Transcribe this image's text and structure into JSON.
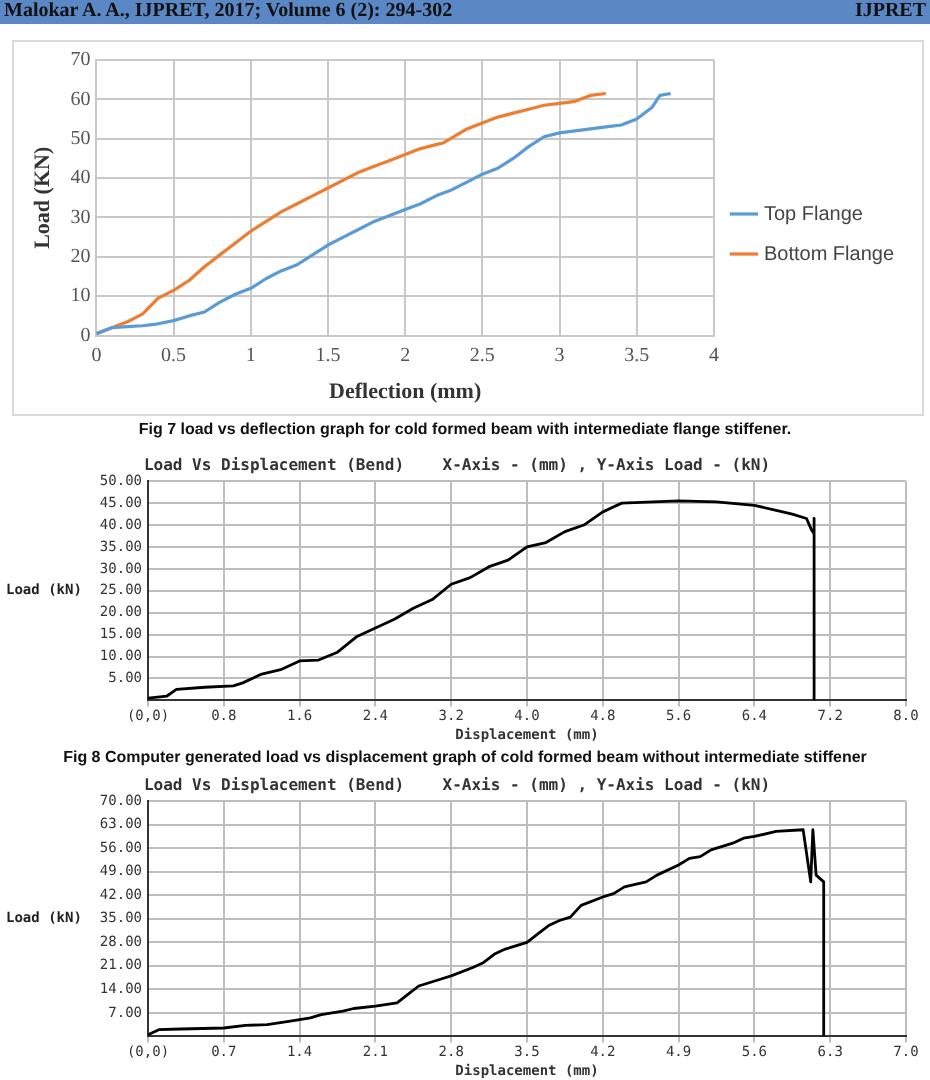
{
  "chart_data": [
    {
      "type": "line",
      "xlabel": "Deflection (mm)",
      "ylabel": "Load (KN)",
      "legend": "right",
      "grid": true,
      "marker": "none",
      "xlim": [
        0,
        4
      ],
      "ylim": [
        0,
        70
      ],
      "xticks": [
        0,
        0.5,
        1,
        1.5,
        2,
        2.5,
        3,
        3.5,
        4
      ],
      "yticks": [
        0,
        10,
        20,
        30,
        40,
        50,
        60,
        70
      ],
      "annotations": [
        "Malokar A. A., IJPRET, 2017; Volume 6 (2): 294-302",
        "IJPRET",
        "Fig 7 load vs deflection graph for cold formed beam with intermediate flange stiffener."
      ],
      "series": [
        {
          "name": "Top Flange",
          "color": "#5b9bd5",
          "x": [
            0,
            0.1,
            0.2,
            0.3,
            0.4,
            0.5,
            0.6,
            0.7,
            0.8,
            0.9,
            1.0,
            1.1,
            1.2,
            1.3,
            1.4,
            1.5,
            1.6,
            1.7,
            1.8,
            1.9,
            2.0,
            2.1,
            2.2,
            2.3,
            2.4,
            2.5,
            2.6,
            2.7,
            2.8,
            2.9,
            3.0,
            3.1,
            3.2,
            3.3,
            3.4,
            3.5,
            3.6,
            3.65,
            3.72
          ],
          "values": [
            0.5,
            2,
            2.3,
            2.5,
            3,
            3.8,
            5,
            6,
            8.5,
            10.5,
            12,
            14.5,
            16.5,
            18,
            20.5,
            23,
            25,
            27,
            29,
            30.5,
            32,
            33.5,
            35.5,
            37,
            39,
            41,
            42.5,
            45,
            48,
            50.5,
            51.5,
            52,
            52.5,
            53,
            53.5,
            55,
            58,
            61,
            61.5
          ]
        },
        {
          "name": "Bottom Flange",
          "color": "#ed7d31",
          "x": [
            0,
            0.1,
            0.2,
            0.3,
            0.4,
            0.5,
            0.6,
            0.7,
            0.8,
            0.9,
            1.0,
            1.1,
            1.2,
            1.3,
            1.4,
            1.5,
            1.6,
            1.7,
            1.8,
            1.9,
            2.0,
            2.1,
            2.2,
            2.25,
            2.4,
            2.5,
            2.6,
            2.7,
            2.8,
            2.9,
            3.0,
            3.1,
            3.2,
            3.3
          ],
          "values": [
            0.5,
            2,
            3.5,
            5.5,
            9.5,
            11.5,
            14,
            17.5,
            20.5,
            23.5,
            26.5,
            29,
            31.5,
            33.5,
            35.5,
            37.5,
            39.5,
            41.5,
            43,
            44.5,
            46,
            47.5,
            48.5,
            49,
            52.5,
            54,
            55.5,
            56.5,
            57.5,
            58.5,
            59,
            59.5,
            61,
            61.5
          ]
        }
      ]
    },
    {
      "type": "line",
      "title": "Load Vs Displacement (Bend)    X-Axis - (mm) , Y-Axis Load - (kN)",
      "xlabel": "Displacement (mm)",
      "ylabel": "Load (kN)",
      "grid": true,
      "marker": "none",
      "color": "#000000",
      "xlim": [
        0,
        8
      ],
      "ylim": [
        0,
        50
      ],
      "xticks": [
        {
          "value": 0,
          "label": "(0,0)"
        },
        0.8,
        1.6,
        2.4,
        3.2,
        {
          "value": 4,
          "label": "4.0"
        },
        4.8,
        5.6,
        6.4,
        7.2,
        {
          "value": 8,
          "label": "8.0"
        }
      ],
      "yticks": [
        {
          "value": 5,
          "label": "5.00"
        },
        {
          "value": 10,
          "label": "10.00"
        },
        {
          "value": 15,
          "label": "15.00"
        },
        {
          "value": 20,
          "label": "20.00"
        },
        {
          "value": 25,
          "label": "25.00"
        },
        {
          "value": 30,
          "label": "30.00"
        },
        {
          "value": 35,
          "label": "35.00"
        },
        {
          "value": 40,
          "label": "40.00"
        },
        {
          "value": 45,
          "label": "45.00"
        },
        {
          "value": 50,
          "label": "50.00"
        }
      ],
      "annotations": [
        "Fig 8 Computer generated load vs displacement graph of cold formed beam without intermediate stiffener"
      ],
      "x": [
        0,
        0.2,
        0.3,
        0.6,
        0.9,
        1.0,
        1.2,
        1.4,
        1.6,
        1.8,
        2.0,
        2.2,
        2.4,
        2.6,
        2.8,
        3.0,
        3.2,
        3.4,
        3.6,
        3.8,
        4.0,
        4.2,
        4.4,
        4.6,
        4.8,
        5.0,
        5.6,
        6.0,
        6.4,
        6.8,
        6.95,
        7.0,
        7.03,
        7.03,
        7.03
      ],
      "values": [
        0.5,
        1,
        2.5,
        3,
        3.3,
        4,
        6,
        7,
        9,
        9.2,
        11,
        14.5,
        16.5,
        18.5,
        21,
        23,
        26.5,
        28,
        30.5,
        32,
        35,
        36,
        38.5,
        40,
        43,
        45,
        45.5,
        45.3,
        44.5,
        42.5,
        41.5,
        39,
        38,
        41.5,
        0
      ]
    },
    {
      "type": "line",
      "title": "Load Vs Displacement (Bend)    X-Axis - (mm) , Y-Axis Load - (kN)",
      "xlabel": "Displacement (mm)",
      "ylabel": "Load (kN)",
      "grid": true,
      "marker": "none",
      "color": "#000000",
      "xlim": [
        0,
        7
      ],
      "ylim": [
        0,
        70
      ],
      "xticks": [
        {
          "value": 0,
          "label": "(0,0)"
        },
        0.7,
        1.4,
        2.1,
        2.8,
        3.5,
        4.2,
        4.9,
        5.6,
        6.3,
        {
          "value": 7,
          "label": "7.0"
        }
      ],
      "yticks": [
        {
          "value": 7,
          "label": "7.00"
        },
        {
          "value": 14,
          "label": "14.00"
        },
        {
          "value": 21,
          "label": "21.00"
        },
        {
          "value": 28,
          "label": "28.00"
        },
        {
          "value": 35,
          "label": "35.00"
        },
        {
          "value": 42,
          "label": "42.00"
        },
        {
          "value": 49,
          "label": "49.00"
        },
        {
          "value": 56,
          "label": "56.00"
        },
        {
          "value": 63,
          "label": "63.00"
        },
        {
          "value": 70,
          "label": "70.00"
        }
      ],
      "x": [
        0,
        0.1,
        0.3,
        0.7,
        0.9,
        1.1,
        1.3,
        1.5,
        1.6,
        1.8,
        1.9,
        2.1,
        2.3,
        2.4,
        2.5,
        2.7,
        2.8,
        3.0,
        3.1,
        3.2,
        3.3,
        3.5,
        3.6,
        3.7,
        3.8,
        3.9,
        4.0,
        4.2,
        4.3,
        4.4,
        4.6,
        4.7,
        4.9,
        5.0,
        5.1,
        5.2,
        5.4,
        5.5,
        5.6,
        5.8,
        6.05,
        6.12,
        6.14,
        6.17,
        6.24,
        6.24
      ],
      "values": [
        0.5,
        2,
        2.2,
        2.5,
        3.3,
        3.5,
        4.5,
        5.5,
        6.5,
        7.5,
        8.3,
        9,
        10,
        12.5,
        15,
        17,
        18,
        20.5,
        22,
        24.5,
        26,
        28,
        30.5,
        33,
        34.5,
        35.5,
        39,
        41.5,
        42.5,
        44.5,
        46,
        48,
        51,
        53,
        53.5,
        55.5,
        57.5,
        59,
        59.5,
        61,
        61.5,
        46,
        61.5,
        48,
        46,
        0
      ]
    }
  ]
}
